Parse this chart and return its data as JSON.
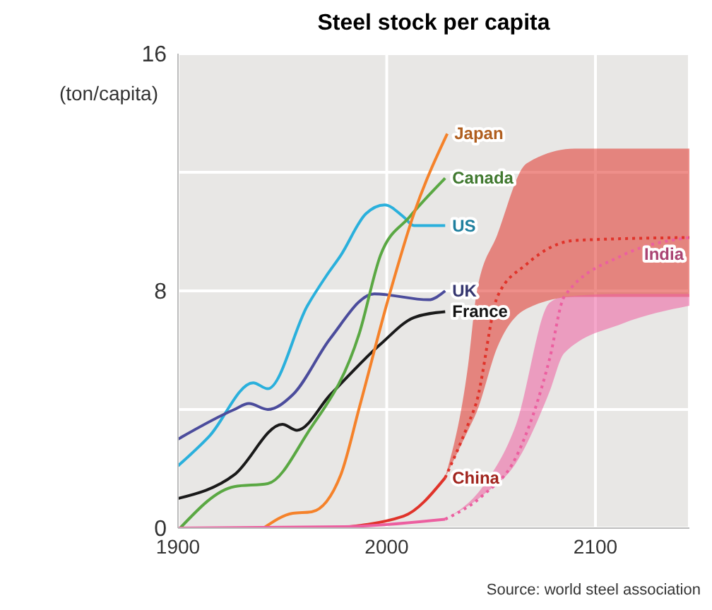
{
  "chart_data": {
    "type": "line",
    "title": "Steel stock per capita",
    "ylabel": "(ton/capita)",
    "xlim": [
      1900,
      2145
    ],
    "xticks": [
      1900,
      2000,
      2100
    ],
    "ylim": [
      0,
      16
    ],
    "yticks": [
      0,
      {
        "value": 4,
        "label": null
      },
      8,
      {
        "value": 12,
        "label": null
      },
      16
    ],
    "grid": true,
    "marker": "none",
    "annotations": [
      "Source: world steel association"
    ],
    "series": [
      {
        "name": "US",
        "color": "#2ab0dc",
        "line_style": "solid",
        "x": [
          1900,
          1915,
          1936,
          1943,
          1962,
          1971,
          1978,
          1990,
          1999,
          2008,
          2013,
          2020,
          2028
        ],
        "values": [
          2.1,
          3.1,
          4.9,
          4.7,
          7.5,
          8.5,
          9.2,
          10.6,
          10.9,
          10.5,
          10.2,
          10.2,
          10.2
        ]
      },
      {
        "name": "UK",
        "color": "#4b4c9c",
        "line_style": "solid",
        "x": [
          1900,
          1927,
          1934,
          1943,
          1955,
          1973,
          1994,
          2020,
          2028
        ],
        "values": [
          3.0,
          4.0,
          4.2,
          4.0,
          4.5,
          6.4,
          7.9,
          7.7,
          8.0
        ]
      },
      {
        "name": "France",
        "color": "#1a1a1a",
        "line_style": "solid",
        "x": [
          1900,
          1927,
          1950,
          1957,
          1973,
          1997,
          2013,
          2028
        ],
        "values": [
          1.0,
          1.8,
          3.5,
          3.3,
          4.5,
          6.2,
          7.1,
          7.3
        ]
      },
      {
        "name": "Canada",
        "color": "#5aa843",
        "line_style": "solid",
        "x": [
          1901,
          1927,
          1943,
          1962,
          1987,
          1997,
          2011,
          2028
        ],
        "values": [
          0,
          1.4,
          1.5,
          3.2,
          6.6,
          9.2,
          10.5,
          11.8
        ]
      },
      {
        "name": "Japan",
        "color": "#f5822a",
        "line_style": "solid",
        "x": [
          1941,
          1955,
          1964,
          1978,
          1987,
          2001,
          2013,
          2029
        ],
        "values": [
          0,
          0.5,
          0.55,
          1.8,
          4.1,
          7.8,
          10.6,
          13.3
        ]
      },
      {
        "name": "China",
        "color": "#e0332a",
        "line_style": "solid",
        "x": [
          1974,
          2008,
          2028
        ],
        "values": [
          0,
          0.4,
          1.7
        ]
      },
      {
        "color": "#e0332a",
        "line_style": "dotted",
        "x": [
          2028,
          2039,
          2043,
          2053,
          2067,
          2090,
          2145
        ],
        "values": [
          1.7,
          3.5,
          4.25,
          7.8,
          8.9,
          9.7,
          9.8
        ],
        "lower": [
          1.7,
          3.3,
          3.9,
          6.1,
          7.4,
          7.8,
          7.8
        ],
        "upper": [
          1.7,
          5.5,
          7.9,
          9.9,
          12.3,
          12.8,
          12.8
        ]
      },
      {
        "color": "#ec5fa0",
        "line_style": "solid",
        "x": [
          1900,
          1980,
          2028
        ],
        "values": [
          0,
          0.05,
          0.3
        ]
      },
      {
        "name": "India",
        "color": "#ec5fa0",
        "line_style": "dotted",
        "x": [
          2028,
          2046,
          2062,
          2078,
          2085,
          2113,
          2145
        ],
        "values": [
          0.3,
          1.1,
          2.4,
          5.7,
          7.8,
          9.2,
          9.8
        ],
        "lower": [
          0.3,
          1.1,
          2.2,
          4.6,
          5.9,
          6.9,
          7.5
        ],
        "upper": [
          0.3,
          1.4,
          3.5,
          7.6,
          7.8,
          7.9,
          7.9
        ]
      }
    ]
  }
}
